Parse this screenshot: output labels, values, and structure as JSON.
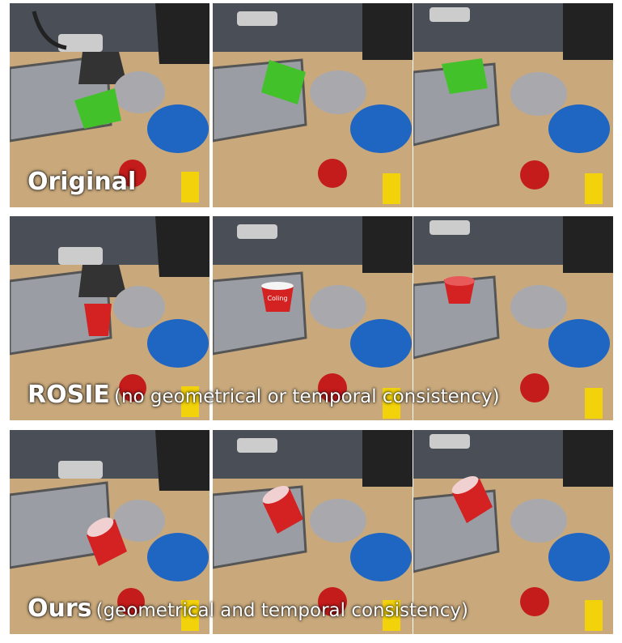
{
  "rows": [
    {
      "id": "original",
      "label": "Original",
      "sub": "",
      "cup": "green"
    },
    {
      "id": "rosie",
      "label": "ROSIE",
      "sub": "(no geometrical or temporal consistency)",
      "cup": "red-cup-inconsistent"
    },
    {
      "id": "ours",
      "label": "Ours",
      "sub": "(geometrical and temporal consistency)",
      "cup": "red-cup-consistent"
    }
  ],
  "cup_text": "Coling",
  "colors": {
    "table": "#c9a97c",
    "bowl_blue": "#1f66c2",
    "bowl_grey": "#a9a9ad",
    "apple": "#c41b1b",
    "green_cup": "#43c12b",
    "red_cup": "#d42121",
    "box_yellow": "#f2d20a"
  }
}
